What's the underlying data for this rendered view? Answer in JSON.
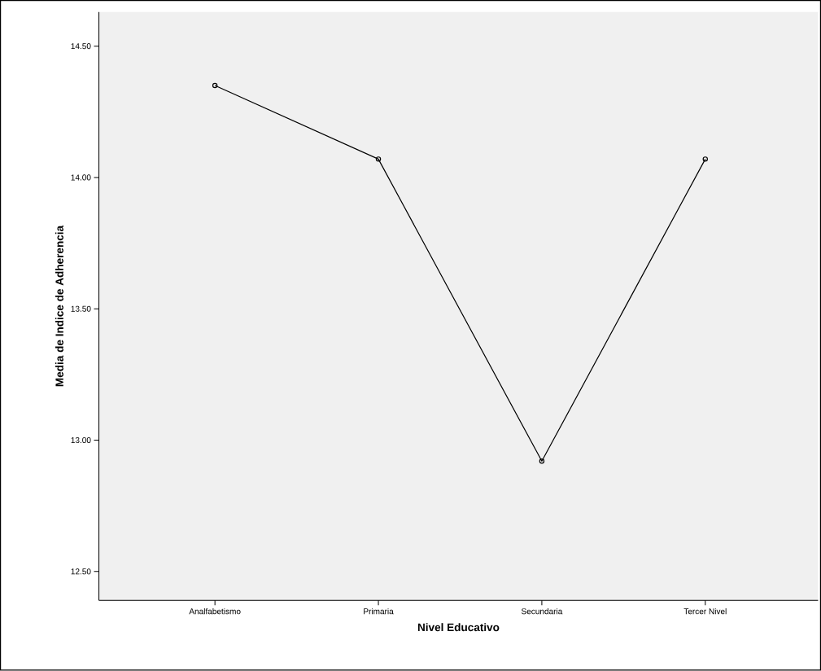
{
  "chart_data": {
    "type": "line",
    "xlabel": "Nivel Educativo",
    "ylabel": "Media de Indice de Adherencia",
    "categories": [
      "Analfabetismo",
      "Primaria",
      "Secundaria",
      "Tercer Nivel"
    ],
    "values": [
      14.35,
      14.07,
      12.92,
      14.07
    ],
    "color": "#000000",
    "marker": "circle",
    "line_style": "solid",
    "ylim": [
      12.39,
      14.63
    ],
    "yticks": [
      {
        "value": 12.5,
        "label": "12.50"
      },
      {
        "value": 13.0,
        "label": "13.00"
      },
      {
        "value": 13.5,
        "label": "13.50"
      },
      {
        "value": 14.0,
        "label": "14.00"
      },
      {
        "value": 14.5,
        "label": "14.50"
      }
    ],
    "grid": false
  }
}
